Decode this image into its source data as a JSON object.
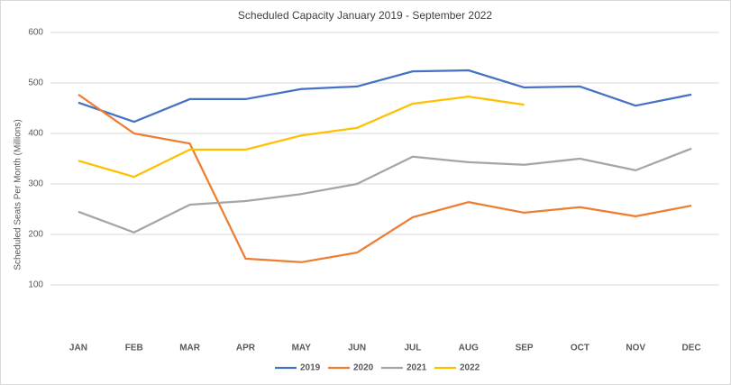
{
  "chart_data": {
    "type": "line",
    "title": "Scheduled Capacity January 2019  - September 2022",
    "y_label": "Scheduled Seats Per Month (Millions)",
    "categories": [
      "JAN",
      "FEB",
      "MAR",
      "APR",
      "MAY",
      "JUN",
      "JUL",
      "AUG",
      "SEP",
      "OCT",
      "NOV",
      "DEC"
    ],
    "series": [
      {
        "name": "2019",
        "color": "#4472c4",
        "values": [
          461,
          423,
          468,
          468,
          488,
          493,
          523,
          525,
          491,
          493,
          455,
          477
        ]
      },
      {
        "name": "2020",
        "color": "#ed7d31",
        "values": [
          477,
          400,
          380,
          152,
          145,
          164,
          234,
          264,
          243,
          254,
          236,
          257
        ]
      },
      {
        "name": "2021",
        "color": "#a5a5a5",
        "values": [
          245,
          204,
          259,
          266,
          280,
          300,
          354,
          343,
          338,
          350,
          327,
          370
        ]
      },
      {
        "name": "2022",
        "color": "#ffc000",
        "values": [
          346,
          314,
          368,
          368,
          396,
          411,
          459,
          473,
          457,
          null,
          null,
          null
        ]
      }
    ],
    "ylim": [
      0,
      600
    ],
    "yticks": [
      100,
      200,
      300,
      400,
      500,
      600
    ],
    "grid": true,
    "legend": "bottom"
  }
}
